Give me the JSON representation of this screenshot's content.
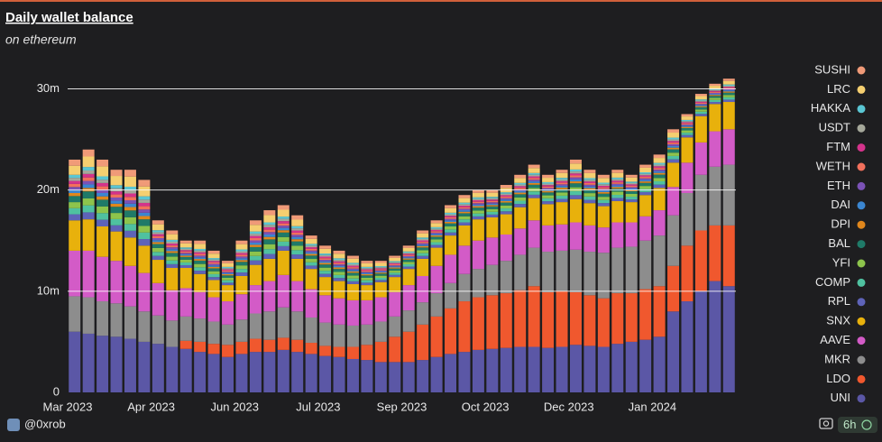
{
  "chart_data": {
    "type": "stacked_bar",
    "title": "Daily wallet balance",
    "subtitle": "on ethereum",
    "footer": "@0xrob",
    "refresh": "6h",
    "categories": [
      "Mar 2023",
      null,
      null,
      null,
      null,
      null,
      "Apr 2023",
      null,
      null,
      null,
      null,
      null,
      "Jun 2023",
      null,
      null,
      null,
      null,
      null,
      "Jul 2023",
      null,
      null,
      null,
      null,
      null,
      "Sep 2023",
      null,
      null,
      null,
      null,
      null,
      "Oct 2023",
      null,
      null,
      null,
      null,
      null,
      "Dec 2023",
      null,
      null,
      null,
      null,
      null,
      "Jan 2024",
      null,
      null,
      null,
      null,
      null
    ],
    "ylim": [
      0,
      32
    ],
    "yticks": [
      0,
      {
        "value": 10,
        "label": "10m"
      },
      {
        "value": 20,
        "label": "20m"
      },
      {
        "value": 30,
        "label": "30m"
      }
    ],
    "grid": true,
    "legend": "right",
    "series": [
      {
        "name": "UNI",
        "color": "#5b57a6",
        "values": [
          6,
          5.8,
          5.6,
          5.5,
          5.3,
          5,
          4.8,
          4.5,
          4.3,
          4,
          3.8,
          3.5,
          3.8,
          4,
          4,
          4.2,
          4,
          3.8,
          3.6,
          3.5,
          3.3,
          3.2,
          3,
          3,
          3,
          3.2,
          3.5,
          3.8,
          4,
          4.2,
          4.3,
          4.4,
          4.5,
          4.5,
          4.4,
          4.5,
          4.7,
          4.6,
          4.5,
          4.8,
          5,
          5.2,
          5.5,
          8,
          9,
          10,
          11,
          10.5
        ]
      },
      {
        "name": "LDO",
        "color": "#f0582e",
        "values": [
          0,
          0,
          0,
          0,
          0,
          0,
          0,
          0,
          0.8,
          1,
          1,
          1.2,
          1.2,
          1.3,
          1.2,
          1.2,
          1.2,
          1.1,
          1,
          1,
          1.2,
          1.5,
          2,
          2.5,
          3,
          3.5,
          4,
          4.5,
          5,
          5.2,
          5.3,
          5.4,
          5.6,
          6,
          5.5,
          5.5,
          5.2,
          5,
          4.8,
          5,
          4.8,
          5,
          5,
          4.5,
          5.5,
          6,
          5.5,
          6
        ]
      },
      {
        "name": "MKR",
        "color": "#8d8d8d",
        "values": [
          3.5,
          3.6,
          3.4,
          3.3,
          3.2,
          3,
          2.8,
          2.6,
          2.4,
          2.3,
          2.2,
          2,
          2.2,
          2.5,
          2.8,
          3,
          2.8,
          2.5,
          2.3,
          2.2,
          2.1,
          2,
          2,
          2,
          2.1,
          2.2,
          2.3,
          2.5,
          2.7,
          2.8,
          3,
          3.2,
          3.5,
          3.8,
          4,
          4,
          4.2,
          4.3,
          4.5,
          4.5,
          4.6,
          4.8,
          5,
          5,
          5.2,
          5.5,
          5.8,
          6
        ]
      },
      {
        "name": "AAVE",
        "color": "#d35bc7",
        "values": [
          4.5,
          4.6,
          4.4,
          4.2,
          4,
          3.8,
          3.2,
          3,
          2.8,
          2.6,
          2.4,
          2.3,
          2.5,
          2.8,
          3,
          3.2,
          3,
          2.8,
          2.7,
          2.6,
          2.5,
          2.4,
          2.4,
          2.4,
          2.5,
          2.6,
          2.7,
          2.8,
          2.8,
          2.8,
          2.7,
          2.6,
          2.6,
          2.7,
          2.6,
          2.6,
          2.7,
          2.6,
          2.5,
          2.5,
          2.4,
          2.4,
          2.5,
          2.8,
          3,
          3.2,
          3.5,
          3.5
        ]
      },
      {
        "name": "SNX",
        "color": "#e8b10c",
        "values": [
          3,
          3.1,
          3,
          2.9,
          2.8,
          2.7,
          2.3,
          2.2,
          2,
          1.8,
          1.7,
          1.6,
          1.8,
          2,
          2.2,
          2.4,
          2.2,
          2,
          1.8,
          1.7,
          1.6,
          1.5,
          1.5,
          1.5,
          1.6,
          1.7,
          1.8,
          1.9,
          2,
          2.1,
          2,
          2,
          2.1,
          2.2,
          2.1,
          2.2,
          2.3,
          2.2,
          2.1,
          2.1,
          2,
          2.1,
          2.2,
          2.4,
          2.5,
          2.6,
          2.7,
          2.7
        ]
      },
      {
        "name": "RPL",
        "color": "#5e63b8",
        "values": [
          0.6,
          0.69,
          0.66,
          0.61,
          0.67,
          0.65,
          0.39,
          0.37,
          0.27,
          0.33,
          0.29,
          0.24,
          0.35,
          0.44,
          0.48,
          0.45,
          0.43,
          0.33,
          0.31,
          0.3,
          0.28,
          0.24,
          0.21,
          0.21,
          0.23,
          0.28,
          0.27,
          0.3,
          0.3,
          0.29,
          0.27,
          0.29,
          0.32,
          0.33,
          0.29,
          0.32,
          0.39,
          0.33,
          0.31,
          0.31,
          0.27,
          0.3,
          0.33,
          0.33,
          0.23,
          0.22,
          0.2,
          0.23
        ]
      },
      {
        "name": "COMP",
        "color": "#4fc1a0",
        "values": [
          0.6,
          0.69,
          0.66,
          0.61,
          0.67,
          0.65,
          0.39,
          0.37,
          0.27,
          0.33,
          0.29,
          0.24,
          0.35,
          0.44,
          0.48,
          0.45,
          0.43,
          0.33,
          0.31,
          0.3,
          0.28,
          0.24,
          0.21,
          0.21,
          0.23,
          0.28,
          0.27,
          0.3,
          0.3,
          0.29,
          0.27,
          0.29,
          0.32,
          0.33,
          0.29,
          0.32,
          0.39,
          0.33,
          0.31,
          0.31,
          0.27,
          0.3,
          0.33,
          0.33,
          0.23,
          0.22,
          0.2,
          0.23
        ]
      },
      {
        "name": "YFI",
        "color": "#8dc44c",
        "values": [
          0.6,
          0.69,
          0.66,
          0.61,
          0.67,
          0.65,
          0.39,
          0.37,
          0.27,
          0.33,
          0.29,
          0.24,
          0.35,
          0.44,
          0.48,
          0.45,
          0.43,
          0.33,
          0.31,
          0.3,
          0.28,
          0.24,
          0.21,
          0.21,
          0.23,
          0.28,
          0.27,
          0.3,
          0.3,
          0.29,
          0.27,
          0.29,
          0.32,
          0.33,
          0.29,
          0.32,
          0.39,
          0.33,
          0.31,
          0.31,
          0.27,
          0.3,
          0.33,
          0.33,
          0.23,
          0.22,
          0.2,
          0.23
        ]
      },
      {
        "name": "BAL",
        "color": "#1f7a68",
        "values": [
          0.6,
          0.69,
          0.66,
          0.61,
          0.67,
          0.65,
          0.39,
          0.37,
          0.27,
          0.33,
          0.29,
          0.24,
          0.35,
          0.44,
          0.48,
          0.45,
          0.43,
          0.33,
          0.31,
          0.3,
          0.28,
          0.24,
          0.21,
          0.21,
          0.23,
          0.28,
          0.27,
          0.3,
          0.3,
          0.29,
          0.27,
          0.29,
          0.32,
          0.33,
          0.29,
          0.32,
          0.39,
          0.33,
          0.31,
          0.31,
          0.27,
          0.3,
          0.33,
          0.33,
          0.23,
          0.22,
          0.2,
          0.23
        ]
      },
      {
        "name": "DPI",
        "color": "#e0871c",
        "values": [
          0.3,
          0.345,
          0.33,
          0.305,
          0.335,
          0.325,
          0.195,
          0.185,
          0.135,
          0.165,
          0.145,
          0.12,
          0.175,
          0.22,
          0.24,
          0.225,
          0.215,
          0.165,
          0.155,
          0.15,
          0.14,
          0.12,
          0.105,
          0.105,
          0.115,
          0.14,
          0.135,
          0.15,
          0.15,
          0.145,
          0.135,
          0.145,
          0.16,
          0.165,
          0.145,
          0.16,
          0.195,
          0.165,
          0.155,
          0.155,
          0.135,
          0.15,
          0.165,
          0.165,
          0.115,
          0.11,
          0.1,
          0.115
        ]
      },
      {
        "name": "DAI",
        "color": "#3b86d1",
        "values": [
          0.3,
          0.345,
          0.33,
          0.305,
          0.335,
          0.325,
          0.195,
          0.185,
          0.135,
          0.165,
          0.145,
          0.12,
          0.175,
          0.22,
          0.24,
          0.225,
          0.215,
          0.165,
          0.155,
          0.15,
          0.14,
          0.12,
          0.105,
          0.105,
          0.115,
          0.14,
          0.135,
          0.15,
          0.15,
          0.145,
          0.135,
          0.145,
          0.16,
          0.165,
          0.145,
          0.16,
          0.195,
          0.165,
          0.155,
          0.155,
          0.135,
          0.15,
          0.165,
          0.165,
          0.115,
          0.11,
          0.1,
          0.115
        ]
      },
      {
        "name": "ETH",
        "color": "#7b52b6",
        "values": [
          0.3,
          0.345,
          0.33,
          0.305,
          0.335,
          0.325,
          0.195,
          0.185,
          0.135,
          0.165,
          0.145,
          0.12,
          0.175,
          0.22,
          0.24,
          0.225,
          0.215,
          0.165,
          0.155,
          0.15,
          0.14,
          0.12,
          0.105,
          0.105,
          0.115,
          0.14,
          0.135,
          0.15,
          0.15,
          0.145,
          0.135,
          0.145,
          0.16,
          0.165,
          0.145,
          0.16,
          0.195,
          0.165,
          0.155,
          0.155,
          0.135,
          0.15,
          0.165,
          0.165,
          0.115,
          0.11,
          0.1,
          0.115
        ]
      },
      {
        "name": "WETH",
        "color": "#f2705c",
        "values": [
          0.3,
          0.345,
          0.33,
          0.305,
          0.335,
          0.325,
          0.195,
          0.185,
          0.135,
          0.165,
          0.145,
          0.12,
          0.175,
          0.22,
          0.24,
          0.225,
          0.215,
          0.165,
          0.155,
          0.15,
          0.14,
          0.12,
          0.105,
          0.105,
          0.115,
          0.14,
          0.135,
          0.15,
          0.15,
          0.145,
          0.135,
          0.145,
          0.16,
          0.165,
          0.145,
          0.16,
          0.195,
          0.165,
          0.155,
          0.155,
          0.135,
          0.15,
          0.165,
          0.165,
          0.115,
          0.11,
          0.1,
          0.115
        ]
      },
      {
        "name": "FTM",
        "color": "#d4338b",
        "values": [
          0.3,
          0.345,
          0.33,
          0.305,
          0.335,
          0.325,
          0.195,
          0.185,
          0.135,
          0.165,
          0.145,
          0.12,
          0.175,
          0.22,
          0.24,
          0.225,
          0.215,
          0.165,
          0.155,
          0.15,
          0.14,
          0.12,
          0.105,
          0.105,
          0.115,
          0.14,
          0.135,
          0.15,
          0.15,
          0.145,
          0.135,
          0.145,
          0.16,
          0.165,
          0.145,
          0.16,
          0.195,
          0.165,
          0.155,
          0.155,
          0.135,
          0.15,
          0.165,
          0.165,
          0.115,
          0.11,
          0.1,
          0.115
        ]
      },
      {
        "name": "USDT",
        "color": "#a5a89a",
        "values": [
          0.3,
          0.345,
          0.33,
          0.305,
          0.335,
          0.325,
          0.195,
          0.185,
          0.135,
          0.165,
          0.145,
          0.12,
          0.175,
          0.22,
          0.24,
          0.225,
          0.215,
          0.165,
          0.155,
          0.15,
          0.14,
          0.12,
          0.105,
          0.105,
          0.115,
          0.14,
          0.135,
          0.15,
          0.15,
          0.145,
          0.135,
          0.145,
          0.16,
          0.165,
          0.145,
          0.16,
          0.195,
          0.165,
          0.155,
          0.155,
          0.135,
          0.15,
          0.165,
          0.165,
          0.115,
          0.11,
          0.1,
          0.115
        ]
      },
      {
        "name": "HAKKA",
        "color": "#5ac6d3",
        "values": [
          0.3,
          0.345,
          0.33,
          0.305,
          0.335,
          0.325,
          0.195,
          0.185,
          0.135,
          0.165,
          0.145,
          0.12,
          0.175,
          0.22,
          0.24,
          0.225,
          0.215,
          0.165,
          0.155,
          0.15,
          0.14,
          0.12,
          0.105,
          0.105,
          0.115,
          0.14,
          0.135,
          0.15,
          0.15,
          0.145,
          0.135,
          0.145,
          0.16,
          0.165,
          0.145,
          0.16,
          0.195,
          0.165,
          0.155,
          0.155,
          0.135,
          0.15,
          0.165,
          0.165,
          0.115,
          0.11,
          0.1,
          0.115
        ]
      },
      {
        "name": "LRC",
        "color": "#f5cf70",
        "values": [
          0.9,
          1.035,
          0.99,
          0.915,
          1.005,
          0.975,
          0.585,
          0.555,
          0.405,
          0.495,
          0.435,
          0.36,
          0.525,
          0.66,
          0.72,
          0.675,
          0.645,
          0.495,
          0.465,
          0.45,
          0.42,
          0.36,
          0.315,
          0.315,
          0.345,
          0.42,
          0.405,
          0.45,
          0.45,
          0.435,
          0.405,
          0.435,
          0.48,
          0.495,
          0.435,
          0.48,
          0.585,
          0.495,
          0.465,
          0.465,
          0.405,
          0.45,
          0.495,
          0.495,
          0.345,
          0.33,
          0.3,
          0.345
        ]
      },
      {
        "name": "SUSHI",
        "color": "#f09a78",
        "values": [
          0.6,
          0.69,
          0.66,
          0.61,
          0.67,
          0.65,
          0.39,
          0.37,
          0.27,
          0.33,
          0.29,
          0.24,
          0.35,
          0.44,
          0.48,
          0.45,
          0.43,
          0.33,
          0.31,
          0.3,
          0.28,
          0.24,
          0.21,
          0.21,
          0.23,
          0.28,
          0.27,
          0.3,
          0.3,
          0.29,
          0.27,
          0.29,
          0.32,
          0.33,
          0.29,
          0.32,
          0.39,
          0.33,
          0.31,
          0.31,
          0.27,
          0.3,
          0.33,
          0.33,
          0.23,
          0.22,
          0.2,
          0.23
        ]
      }
    ]
  }
}
